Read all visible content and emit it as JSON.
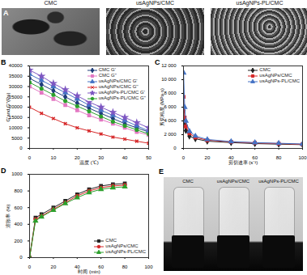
{
  "panels": [
    {
      "letter": "A",
      "labels": [
        "CMC",
        "usAgNPs/CMC",
        "usAgNPs-PL/CMC"
      ]
    },
    {
      "letter": "E",
      "labels": [
        "CMC",
        "usAgNPs/CMC",
        "usAgNPs-PL/CMC"
      ]
    }
  ],
  "chart_data": [
    {
      "type": "line",
      "title": "B",
      "x_label": "温度 (℃)",
      "y_label": "G'and G''(Pa)",
      "x": [
        0,
        5,
        10,
        15,
        20,
        25,
        30,
        35,
        40,
        45,
        50
      ],
      "xlim": [
        0,
        50
      ],
      "xticks": [
        0,
        10,
        20,
        30,
        40,
        50
      ],
      "ylim": [
        0,
        40000
      ],
      "yticks": [
        0,
        5000,
        10000,
        15000,
        20000,
        25000,
        30000,
        35000,
        40000
      ],
      "grid": false,
      "legend": "upper right",
      "series": [
        {
          "name": "CMC G'",
          "color": "#1f3d7a",
          "marker": "diamond",
          "values": [
            34000,
            31000,
            28000,
            25000,
            22000,
            19500,
            17000,
            14500,
            12000,
            10000,
            8000
          ]
        },
        {
          "name": "CMC G''",
          "color": "#e377c2",
          "marker": "square",
          "values": [
            30000,
            27000,
            24000,
            21000,
            18500,
            16000,
            14000,
            12000,
            10000,
            8000,
            6500
          ]
        },
        {
          "name": "usAgNPs/CMC G'",
          "color": "#4472c4",
          "marker": "triangle",
          "values": [
            36000,
            33000,
            30000,
            27000,
            24000,
            21000,
            18500,
            16000,
            13500,
            11000,
            8500
          ]
        },
        {
          "name": "usAgNPs/CMC G''",
          "color": "#d62728",
          "marker": "times",
          "values": [
            20000,
            17000,
            14500,
            12000,
            10000,
            8500,
            7000,
            5500,
            4500,
            3500,
            2500
          ]
        },
        {
          "name": "usAgNPs-PL/CMC G'",
          "color": "#7e57c2",
          "marker": "star",
          "values": [
            38000,
            35000,
            31500,
            28500,
            25500,
            22500,
            20000,
            17500,
            15000,
            12500,
            10000
          ]
        },
        {
          "name": "usAgNPs-PL/CMC G''",
          "color": "#2ca02c",
          "marker": "circle",
          "values": [
            32000,
            29000,
            26000,
            23000,
            20500,
            18000,
            15500,
            13000,
            11000,
            9000,
            7000
          ]
        }
      ]
    },
    {
      "type": "line",
      "title": "C",
      "x_label": "剪切速率 (s⁻¹)",
      "y_label": "剪切粘度 (MPa·s)",
      "x": [
        0.1,
        1,
        2,
        5,
        10,
        20,
        40,
        60,
        80,
        100
      ],
      "xlim": [
        0,
        100
      ],
      "xticks": [
        0,
        20,
        40,
        60,
        80,
        100
      ],
      "ylim": [
        0,
        12000
      ],
      "yticks": [
        0,
        {
          "value": 2000,
          "label": "2 000"
        },
        {
          "value": 4000,
          "label": "4 000"
        },
        {
          "value": 6000,
          "label": "6 000"
        },
        {
          "value": 8000,
          "label": "8 000"
        },
        {
          "value": 10000,
          "label": "10 000"
        },
        {
          "value": 12000,
          "label": "12 000"
        }
      ],
      "grid": false,
      "legend": "upper right",
      "series": [
        {
          "name": "CMC",
          "color": "#222222",
          "marker": "diamond",
          "values": [
            5500,
            3500,
            2600,
            1800,
            1400,
            1050,
            850,
            700,
            620,
            550
          ]
        },
        {
          "name": "usAgNPs/CMC",
          "color": "#d62728",
          "marker": "square",
          "values": [
            7500,
            4500,
            3200,
            2200,
            1600,
            1200,
            950,
            800,
            700,
            600
          ]
        },
        {
          "name": "usAgNPs-PL/CMC",
          "color": "#4472c4",
          "marker": "triangle",
          "values": [
            11000,
            6000,
            4000,
            2500,
            1800,
            1300,
            1000,
            850,
            750,
            650
          ]
        }
      ]
    },
    {
      "type": "line",
      "title": "D",
      "x_label": "时间 (min)",
      "y_label": "溶胀率 (%)",
      "x": [
        0,
        5,
        10,
        20,
        30,
        40,
        50,
        60,
        70,
        80
      ],
      "xlim": [
        0,
        100
      ],
      "xticks": [
        0,
        20,
        40,
        60,
        80,
        100
      ],
      "ylim": [
        0,
        1000
      ],
      "yticks": [
        0,
        200,
        400,
        600,
        800,
        1000
      ],
      "grid": false,
      "legend": "lower right",
      "series": [
        {
          "name": "CMC",
          "color": "#222222",
          "marker": "square",
          "values": [
            0,
            480,
            520,
            600,
            680,
            760,
            820,
            860,
            880,
            890
          ]
        },
        {
          "name": "usAgNPs/CMC",
          "color": "#d62728",
          "marker": "circle",
          "values": [
            0,
            460,
            500,
            580,
            660,
            740,
            800,
            840,
            860,
            870
          ]
        },
        {
          "name": "usAgNPs-PL/CMC",
          "color": "#2ca02c",
          "marker": "triangle",
          "values": [
            0,
            440,
            490,
            570,
            650,
            720,
            780,
            820,
            840,
            850
          ]
        }
      ]
    }
  ]
}
